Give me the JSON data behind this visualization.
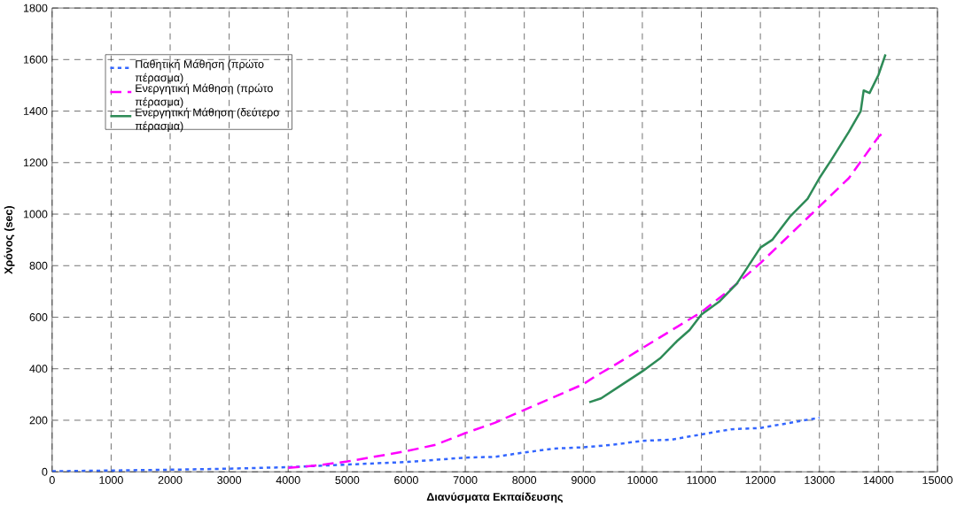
{
  "chart_data": {
    "type": "line",
    "xlabel": "Διανύσματα Εκπαίδευσης",
    "ylabel": "Χρόνος (sec)",
    "xlim": [
      0,
      15000
    ],
    "xticks": [
      0,
      1000,
      2000,
      3000,
      4000,
      5000,
      6000,
      7000,
      8000,
      9000,
      10000,
      11000,
      12000,
      13000,
      14000,
      15000
    ],
    "ylim": [
      0,
      1800
    ],
    "yticks": [
      0,
      200,
      400,
      600,
      800,
      1000,
      1200,
      1400,
      1600,
      1800
    ],
    "grid": true,
    "legend": "top left",
    "series": [
      {
        "name": "Παθητική Μάθηση (πρώτο πέρασμα)",
        "color": "#3366ff",
        "line_style": "dotted",
        "x": [
          0,
          1000,
          2000,
          3000,
          4000,
          5000,
          6000,
          7000,
          7500,
          8000,
          8500,
          9000,
          9500,
          10000,
          10500,
          11000,
          11500,
          12000,
          12500,
          13000
        ],
        "values": [
          2,
          5,
          8,
          12,
          18,
          28,
          38,
          55,
          58,
          75,
          90,
          95,
          105,
          120,
          125,
          145,
          165,
          170,
          190,
          210
        ]
      },
      {
        "name": "Ενεργητική Μάθηση (πρώτο πέρασμα)",
        "color": "#ff00ff",
        "line_style": "dashed",
        "x": [
          4000,
          4500,
          5000,
          5500,
          6000,
          6500,
          7000,
          7500,
          8000,
          8500,
          9000,
          9200,
          9500,
          10000,
          10500,
          11000,
          11500,
          12000,
          12500,
          13000,
          13500,
          14000,
          14100
        ],
        "values": [
          15,
          25,
          40,
          60,
          80,
          105,
          150,
          190,
          240,
          290,
          340,
          370,
          410,
          480,
          550,
          620,
          710,
          810,
          920,
          1030,
          1140,
          1300,
          1320
        ]
      },
      {
        "name": "Ενεργητική Μάθηση (δεύτερο πέρασμα)",
        "color": "#2e8b57",
        "line_style": "solid",
        "x": [
          9100,
          9300,
          9600,
          10000,
          10300,
          10600,
          10800,
          11000,
          11300,
          11600,
          12000,
          12200,
          12500,
          12800,
          13000,
          13200,
          13500,
          13700,
          13750,
          13850,
          14000,
          14120
        ],
        "values": [
          270,
          285,
          330,
          390,
          440,
          510,
          550,
          610,
          660,
          730,
          870,
          900,
          990,
          1060,
          1140,
          1210,
          1320,
          1400,
          1480,
          1470,
          1540,
          1620
        ]
      }
    ]
  }
}
